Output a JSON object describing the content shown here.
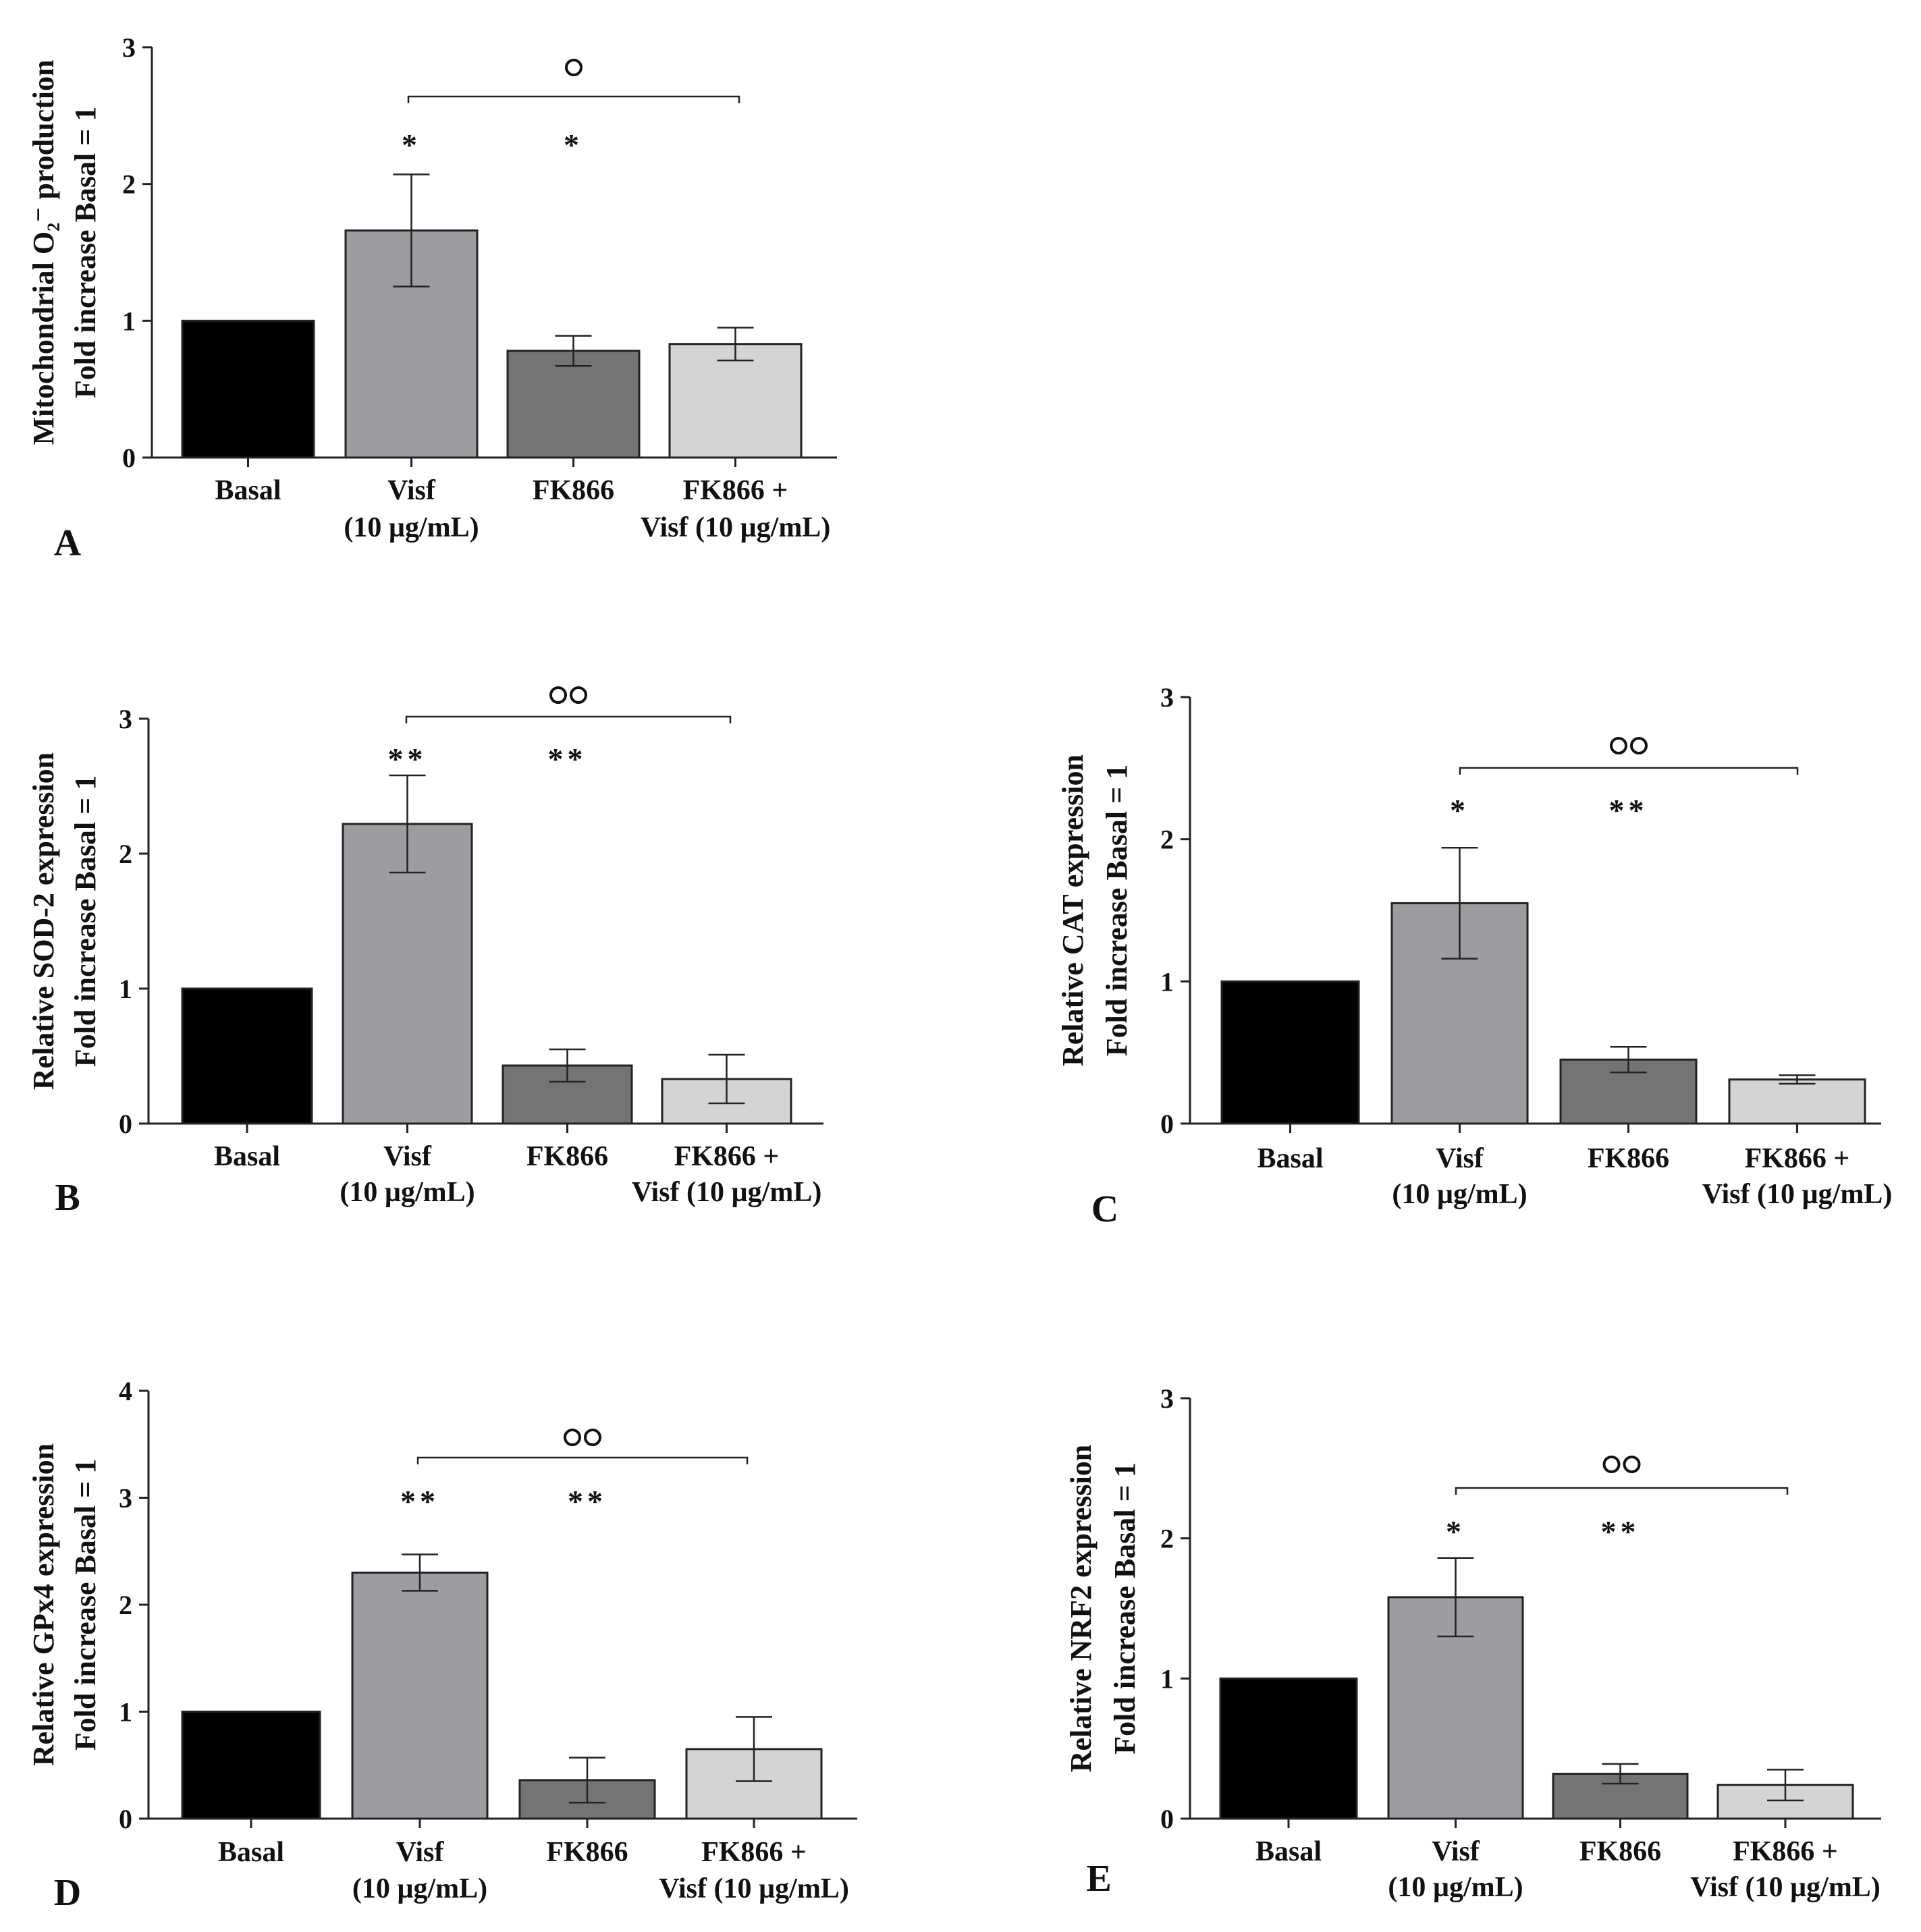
{
  "chart_data": [
    {
      "panel": "A",
      "type": "bar",
      "ylabel_lines": [
        "Mitochondrial O₂⁻ production",
        "Fold increase Basal = 1"
      ],
      "ylim": [
        0,
        3
      ],
      "yticks": [
        "0",
        "1",
        "2",
        "3"
      ],
      "categories": [
        {
          "line1": "Basal",
          "line2": ""
        },
        {
          "line1": "Visf",
          "line2": "(10 µg/mL)"
        },
        {
          "line1": "FK866",
          "line2": ""
        },
        {
          "line1": "FK866 +",
          "line2": "Visf (10 µg/mL)"
        }
      ],
      "values": [
        1.0,
        1.66,
        0.78,
        0.83
      ],
      "errors": [
        0,
        0.41,
        0.11,
        0.12
      ],
      "colors": [
        "#000000",
        "#9d9ca1",
        "#747474",
        "#d4d4d4"
      ],
      "stars": [
        "",
        "*",
        "*",
        ""
      ],
      "bracket_label": "°"
    },
    {
      "panel": "B",
      "type": "bar",
      "ylabel_lines": [
        "Relative SOD-2 expression",
        "Fold increase Basal = 1"
      ],
      "ylim": [
        0,
        3
      ],
      "yticks": [
        "0",
        "1",
        "2",
        "3"
      ],
      "categories": [
        {
          "line1": "Basal",
          "line2": ""
        },
        {
          "line1": "Visf",
          "line2": "(10 µg/mL)"
        },
        {
          "line1": "FK866",
          "line2": ""
        },
        {
          "line1": "FK866 +",
          "line2": "Visf (10 µg/mL)"
        }
      ],
      "values": [
        1.0,
        2.22,
        0.43,
        0.33
      ],
      "errors": [
        0,
        0.36,
        0.12,
        0.18
      ],
      "colors": [
        "#000000",
        "#9d9ca1",
        "#747474",
        "#d4d4d4"
      ],
      "stars": [
        "",
        "**",
        "**",
        ""
      ],
      "bracket_label": "°°"
    },
    {
      "panel": "C",
      "type": "bar",
      "ylabel_lines": [
        "Relative CAT expression",
        "Fold increase Basal = 1"
      ],
      "ylim": [
        0,
        3
      ],
      "yticks": [
        "0",
        "1",
        "2",
        "3"
      ],
      "categories": [
        {
          "line1": "Basal",
          "line2": ""
        },
        {
          "line1": "Visf",
          "line2": "(10 µg/mL)"
        },
        {
          "line1": "FK866",
          "line2": ""
        },
        {
          "line1": "FK866 +",
          "line2": "Visf (10 µg/mL)"
        }
      ],
      "values": [
        1.0,
        1.55,
        0.45,
        0.31
      ],
      "errors": [
        0,
        0.39,
        0.09,
        0.03
      ],
      "colors": [
        "#000000",
        "#9d9ca1",
        "#747474",
        "#d4d4d4"
      ],
      "stars": [
        "",
        "*",
        "**",
        ""
      ],
      "bracket_label": "°°"
    },
    {
      "panel": "D",
      "type": "bar",
      "ylabel_lines": [
        "Relative GPx4 expression",
        "Fold increase Basal = 1"
      ],
      "ylim": [
        0,
        4
      ],
      "yticks": [
        "0",
        "1",
        "2",
        "3",
        "4"
      ],
      "categories": [
        {
          "line1": "Basal",
          "line2": ""
        },
        {
          "line1": "Visf",
          "line2": "(10 µg/mL)"
        },
        {
          "line1": "FK866",
          "line2": ""
        },
        {
          "line1": "FK866 +",
          "line2": "Visf (10 µg/mL)"
        }
      ],
      "values": [
        1.0,
        2.3,
        0.36,
        0.65
      ],
      "errors": [
        0,
        0.17,
        0.21,
        0.3
      ],
      "colors": [
        "#000000",
        "#9d9ca1",
        "#747474",
        "#d4d4d4"
      ],
      "stars": [
        "",
        "**",
        "**",
        ""
      ],
      "bracket_label": "°°"
    },
    {
      "panel": "E",
      "type": "bar",
      "ylabel_lines": [
        "Relative NRF2 expression",
        "Fold increase Basal = 1"
      ],
      "ylim": [
        0,
        3
      ],
      "yticks": [
        "0",
        "1",
        "2",
        "3"
      ],
      "categories": [
        {
          "line1": "Basal",
          "line2": ""
        },
        {
          "line1": "Visf",
          "line2": "(10 µg/mL)"
        },
        {
          "line1": "FK866",
          "line2": ""
        },
        {
          "line1": "FK866 +",
          "line2": "Visf (10 µg/mL)"
        }
      ],
      "values": [
        1.0,
        1.58,
        0.32,
        0.24
      ],
      "errors": [
        0,
        0.28,
        0.07,
        0.11
      ],
      "colors": [
        "#000000",
        "#9d9ca1",
        "#747474",
        "#d4d4d4"
      ],
      "stars": [
        "",
        "*",
        "**",
        ""
      ],
      "bracket_label": "°°"
    }
  ]
}
